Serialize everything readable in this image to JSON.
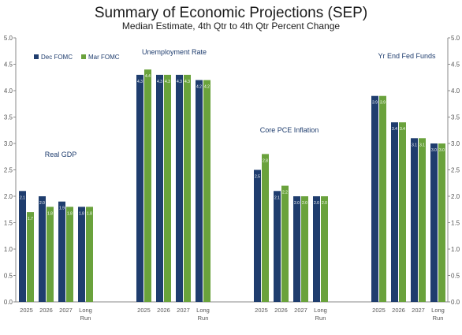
{
  "header": {
    "title": "Summary of Economic Projections (SEP)",
    "subtitle": "Median Estimate, 4th Qtr to 4th Qtr Percent Change"
  },
  "chart_data": {
    "type": "bar",
    "title": "Summary of Economic Projections (SEP)",
    "subtitle": "Median Estimate, 4th Qtr to 4th Qtr Percent Change",
    "ylim": [
      0,
      5
    ],
    "yticks": [
      "0.0",
      "0.5",
      "1.0",
      "1.5",
      "2.0",
      "2.5",
      "3.0",
      "3.5",
      "4.0",
      "4.5",
      "5.0"
    ],
    "grid": false,
    "legend_position": "top-left",
    "series": [
      {
        "name": "Dec FOMC",
        "color": "#1f3d6e"
      },
      {
        "name": "Mar FOMC",
        "color": "#6aa23c"
      }
    ],
    "groups": [
      {
        "name": "Real GDP",
        "categories": [
          "2025",
          "2026",
          "2027",
          "Long\nRun"
        ],
        "dec": [
          2.1,
          2.0,
          1.9,
          1.8
        ],
        "mar": [
          1.7,
          1.8,
          1.8,
          1.8
        ]
      },
      {
        "name": "Unemployment Rate",
        "categories": [
          "2025",
          "2026",
          "2027",
          "Long\nRun"
        ],
        "dec": [
          4.3,
          4.3,
          4.3,
          4.2
        ],
        "mar": [
          4.4,
          4.3,
          4.3,
          4.2
        ]
      },
      {
        "name": "Core PCE Inflation",
        "categories": [
          "2025",
          "2026",
          "2027",
          "Long\nRun"
        ],
        "dec": [
          2.5,
          2.1,
          2.0,
          2.0
        ],
        "mar": [
          2.8,
          2.2,
          2.0,
          2.0
        ]
      },
      {
        "name": "Yr End Fed Funds",
        "categories": [
          "2025",
          "2026",
          "2027",
          "Long\nRun"
        ],
        "dec": [
          3.9,
          3.4,
          3.1,
          3.0
        ],
        "mar": [
          3.9,
          3.4,
          3.1,
          3.0
        ]
      }
    ]
  }
}
